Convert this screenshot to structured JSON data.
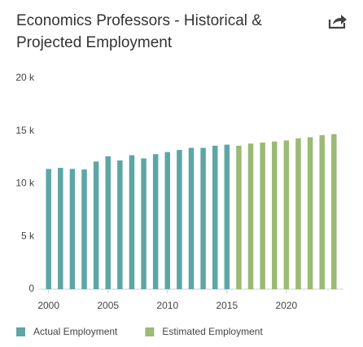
{
  "chart_data": {
    "type": "bar",
    "title": "Economics Professors - Historical & Projected Employment",
    "x": [
      2000,
      2001,
      2002,
      2003,
      2004,
      2005,
      2006,
      2007,
      2008,
      2009,
      2010,
      2011,
      2012,
      2013,
      2014,
      2015,
      2016,
      2017,
      2018,
      2019,
      2020,
      2021,
      2022,
      2023,
      2024
    ],
    "series": [
      {
        "name": "Actual Employment",
        "color": "#5ea6a6",
        "values": [
          11400,
          11500,
          11400,
          11350,
          12100,
          12600,
          12200,
          12700,
          12400,
          12800,
          13000,
          13200,
          13400,
          13400,
          13600,
          13700,
          null,
          null,
          null,
          null,
          null,
          null,
          null,
          null,
          null
        ]
      },
      {
        "name": "Estimated Employment",
        "color": "#9bba74",
        "values": [
          null,
          null,
          null,
          null,
          null,
          null,
          null,
          null,
          null,
          null,
          null,
          null,
          null,
          null,
          null,
          null,
          13600,
          13800,
          13900,
          14000,
          14100,
          14300,
          14400,
          14600,
          14700
        ]
      }
    ],
    "xlim": [
      1999.2,
      2024.8
    ],
    "xticks": [
      2000,
      2005,
      2010,
      2015,
      2020
    ],
    "ylim": [
      0,
      20000
    ],
    "yticks": [
      {
        "value": 0,
        "label": "0"
      },
      {
        "value": 5000,
        "label": "5 k"
      },
      {
        "value": 10000,
        "label": "10 k"
      },
      {
        "value": 15000,
        "label": "15 k"
      },
      {
        "value": 20000,
        "label": "20 k"
      }
    ],
    "grid": false,
    "legend": "bottom"
  }
}
